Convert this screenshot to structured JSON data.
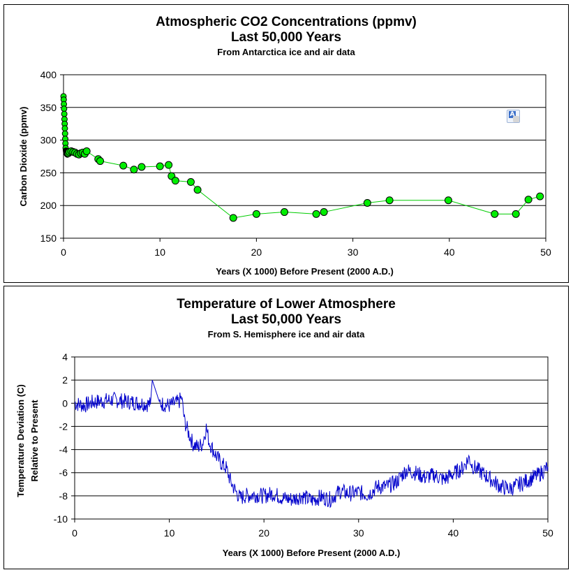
{
  "chart_data": [
    {
      "type": "scatter",
      "title": "Atmospheric CO2 Concentrations (ppmv)",
      "subtitle": "Last 50,000 Years",
      "subtitle2": "From Antarctica ice and air data",
      "xlabel": "Years (X 1000) Before Present (2000 A.D.)",
      "ylabel": "Carbon Dioxide (ppmv)",
      "xlim": [
        0,
        50
      ],
      "ylim": [
        150,
        400
      ],
      "xticks": [
        "0",
        "10",
        "20",
        "30",
        "40",
        "50"
      ],
      "yticks": [
        "150",
        "200",
        "250",
        "300",
        "350",
        "400"
      ],
      "grid": "horizontal",
      "marker_color": "#00ee00",
      "line_color": "#00cc00",
      "series": [
        {
          "x": [
            0.0,
            0.02,
            0.04,
            0.06,
            0.08,
            0.1,
            0.12,
            0.14,
            0.16,
            0.18,
            0.2,
            0.22,
            0.25,
            0.28,
            0.3,
            0.35,
            0.4,
            0.5,
            0.6,
            0.8,
            1.0,
            1.2,
            1.4,
            1.6,
            1.8,
            2.0,
            2.2,
            2.4,
            3.6,
            3.8,
            6.2,
            7.3,
            8.1,
            10.0,
            10.9,
            11.2,
            11.6,
            13.2,
            13.9,
            17.6,
            20.0,
            22.9,
            26.2,
            27.0,
            31.5,
            33.8,
            39.9,
            44.7,
            46.9,
            48.2,
            49.4
          ],
          "y": [
            367,
            362,
            355,
            348,
            340,
            332,
            325,
            318,
            310,
            302,
            295,
            288,
            284,
            281,
            280,
            279,
            278,
            280,
            282,
            283,
            282,
            281,
            279,
            278,
            280,
            281,
            279,
            283,
            271,
            268,
            261,
            255,
            259,
            260,
            262,
            245,
            238,
            236,
            224,
            181,
            187,
            190,
            187,
            190,
            204,
            208,
            208,
            187,
            187,
            209,
            214
          ]
        }
      ]
    },
    {
      "type": "line",
      "title": "Temperature of Lower Atmosphere",
      "subtitle": "Last 50,000 Years",
      "subtitle2": "From S. Hemisphere ice and air data",
      "xlabel": "Years (X 1000) Before Present (2000 A.D.)",
      "ylabel_line1": "Temperature Deviation (C)",
      "ylabel_line2": "Relative to Present",
      "xlim": [
        0,
        50
      ],
      "ylim": [
        -10,
        4
      ],
      "xticks": [
        "0",
        "10",
        "20",
        "30",
        "40",
        "50"
      ],
      "yticks": [
        "-10",
        "-8",
        "-6",
        "-4",
        "-2",
        "0",
        "2",
        "4"
      ],
      "grid": "horizontal",
      "line_color": "#0000cc",
      "series": [
        {
          "x": [
            0,
            1,
            2,
            3,
            4,
            5,
            6,
            7,
            8,
            8.2,
            9,
            10,
            11,
            11.3,
            11.6,
            12,
            12.5,
            13,
            13.5,
            13.9,
            14.2,
            14.6,
            15,
            15.5,
            16,
            16.5,
            17,
            17.5,
            18,
            19,
            20,
            21,
            22,
            23,
            24,
            25,
            26,
            27,
            28,
            29,
            30,
            31,
            32,
            33,
            34,
            35,
            36,
            37,
            38,
            39,
            40,
            41,
            41.7,
            42,
            43,
            44,
            45,
            46,
            47,
            48,
            49,
            50
          ],
          "x_note": "",
          "y": [
            0,
            -0.2,
            0.1,
            0.2,
            0.3,
            0.2,
            0.1,
            0.0,
            -0.1,
            2.0,
            0.0,
            -0.2,
            0.1,
            0.5,
            -1.5,
            -2.5,
            -3.5,
            -3.8,
            -3.5,
            -2.1,
            -3.3,
            -4.0,
            -4.6,
            -5.2,
            -5.6,
            -6.8,
            -7.6,
            -8.2,
            -8.0,
            -7.9,
            -8.0,
            -7.8,
            -8.2,
            -8.3,
            -8.0,
            -8.4,
            -8.1,
            -8.3,
            -7.6,
            -7.8,
            -7.7,
            -7.9,
            -7.2,
            -7.2,
            -6.8,
            -5.8,
            -6.0,
            -6.4,
            -6.2,
            -6.6,
            -6.1,
            -5.6,
            -4.7,
            -5.4,
            -6.0,
            -6.6,
            -7.2,
            -7.4,
            -7.0,
            -6.6,
            -6.2,
            -5.5
          ]
        }
      ]
    }
  ]
}
